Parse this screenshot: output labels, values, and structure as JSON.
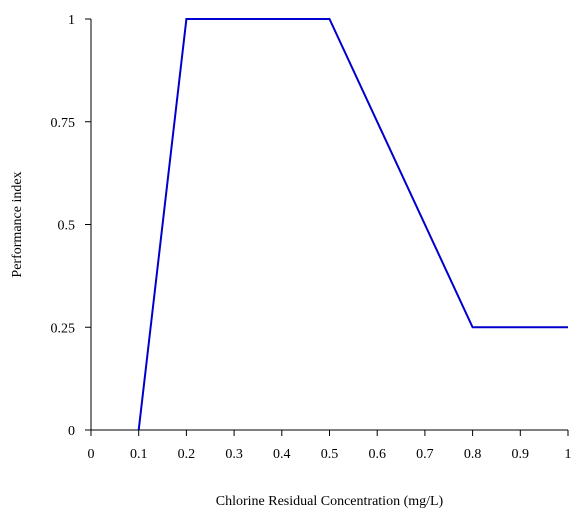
{
  "chart_data": {
    "type": "line",
    "title": "",
    "xlabel": "Chlorine Residual Concentration (mg/L)",
    "ylabel": "Performance index",
    "xlim": [
      0,
      1
    ],
    "ylim": [
      0,
      1
    ],
    "x_ticks": [
      0,
      0.1,
      0.2,
      0.3,
      0.4,
      0.5,
      0.6,
      0.7,
      0.8,
      0.9,
      1
    ],
    "x_tick_labels": [
      "0",
      "0.1",
      "0.2",
      "0.3",
      "0.4",
      "0.5",
      "0.6",
      "0.7",
      "0.8",
      "0.9",
      "1"
    ],
    "y_ticks": [
      0,
      0.25,
      0.5,
      0.75,
      1
    ],
    "y_tick_labels": [
      "0",
      "0.25",
      "0.5",
      "0.75",
      "1"
    ],
    "grid": false,
    "legend": "none",
    "series": [
      {
        "color": "#0000cc",
        "x": [
          0.1,
          0.2,
          0.5,
          0.8,
          1.0
        ],
        "y": [
          0,
          1,
          1,
          0.25,
          0.25
        ]
      }
    ]
  }
}
